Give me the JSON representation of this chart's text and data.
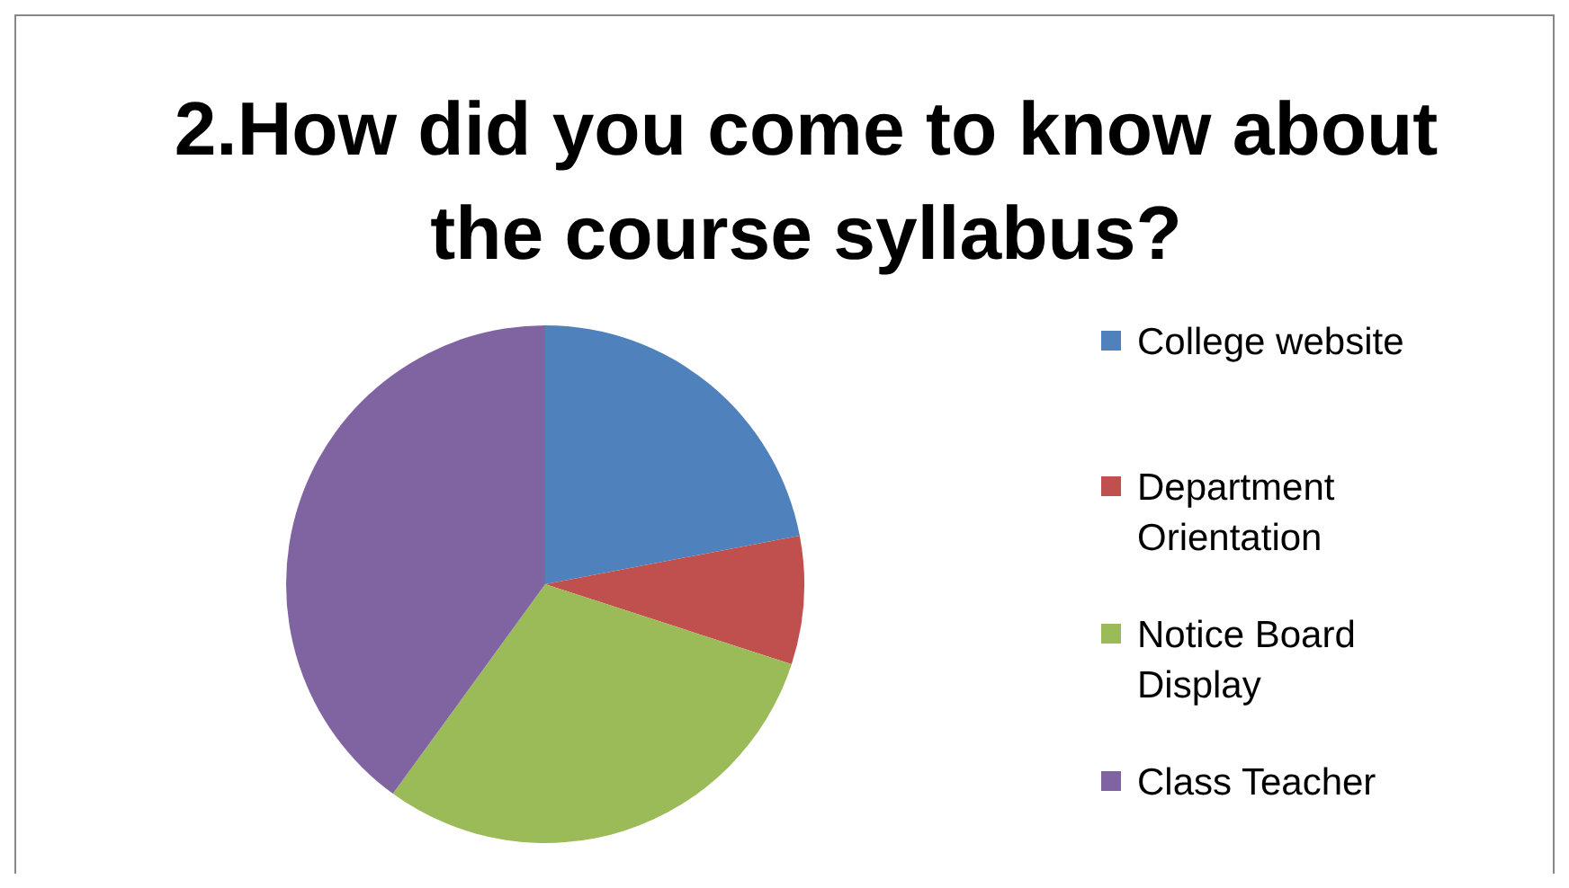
{
  "chart_data": {
    "type": "pie",
    "title": "2.How did you come to know about the course syllabus?",
    "categories": [
      "College website",
      "Department Orientation",
      "Notice Board Display",
      "Class Teacher"
    ],
    "values": [
      22,
      8,
      30,
      40
    ],
    "colors": [
      "#4f81bd",
      "#c0504d",
      "#9bbb59",
      "#8064a2"
    ],
    "legend": "right"
  }
}
